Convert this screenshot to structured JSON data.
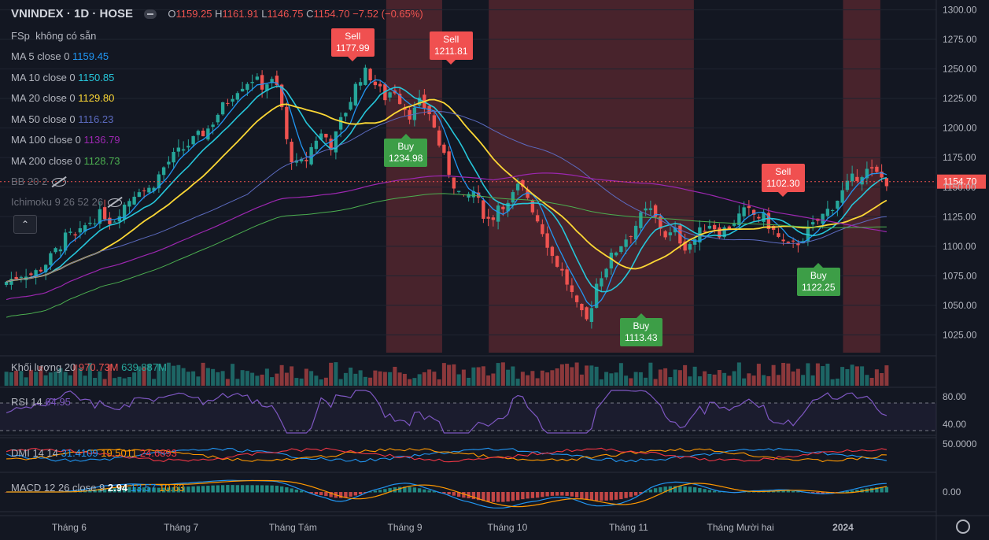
{
  "header": {
    "symbol": "VNINDEX · 1D · HOSE",
    "open_label": "O",
    "open": "1159.25",
    "high_label": "H",
    "high": "1161.91",
    "low_label": "L",
    "low": "1146.75",
    "close_label": "C",
    "close": "1154.70",
    "change": "−7.52 (−0.65%)"
  },
  "legend": {
    "fsp": {
      "label": "FSp",
      "value": "không có sẵn"
    },
    "ma": [
      {
        "label": "MA 5 close 0",
        "value": "1159.45",
        "color": "#2196f3"
      },
      {
        "label": "MA 10 close 0",
        "value": "1150.85",
        "color": "#26c6da"
      },
      {
        "label": "MA 20 close 0",
        "value": "1129.80",
        "color": "#fdd835"
      },
      {
        "label": "MA 50 close 0",
        "value": "1116.23",
        "color": "#5c6bc0"
      },
      {
        "label": "MA 100 close 0",
        "value": "1136.79",
        "color": "#9c27b0"
      },
      {
        "label": "MA 200 close 0",
        "value": "1128.73",
        "color": "#4caf50"
      }
    ],
    "bb": "BB 20 2",
    "ichimoku": "Ichimoku 9 26 52 26",
    "collapse_icon": "chevron-up-icon"
  },
  "price_label": "1154.70",
  "volume_legend": {
    "label": "Khối lượng 20",
    "v1": "970.73M",
    "v2": "639.887M"
  },
  "rsi_legend": {
    "label": "RSI 14",
    "value": "64.95"
  },
  "dmi_legend": {
    "label": "DMI 14 14",
    "v1": "31.4109",
    "v2": "19.5011",
    "v3": "24.6893"
  },
  "macd_legend": {
    "label": "MACD 12 26 close 9",
    "v1": "2.94",
    "v2": "13.57",
    "v3": "10.63"
  },
  "signals": [
    {
      "type": "Sell",
      "value": "1177.99"
    },
    {
      "type": "Sell",
      "value": "1211.81"
    },
    {
      "type": "Buy",
      "value": "1234.98"
    },
    {
      "type": "Buy",
      "value": "1113.43"
    },
    {
      "type": "Sell",
      "value": "1102.30"
    },
    {
      "type": "Buy",
      "value": "1122.25"
    }
  ],
  "colors": {
    "up": "#26a69a",
    "down": "#ef5350",
    "shade": "#5b2830",
    "bg": "#131722",
    "grid": "#1f2430",
    "axis_text": "#b2b5be"
  },
  "chart_data": {
    "type": "candlestick",
    "title": "VNINDEX",
    "price_axis_ticks": [
      1025,
      1050,
      1075,
      1100,
      1125,
      1150,
      1175,
      1200,
      1225,
      1250,
      1275,
      1300
    ],
    "price_axis_labels": [
      "1025.00",
      "1050.00",
      "1075.00",
      "1100.00",
      "1125.00",
      "1150.00",
      "1175.00",
      "1200.00",
      "1225.00",
      "1250.00",
      "1275.00",
      "1300.00"
    ],
    "ylim": [
      1010,
      1305
    ],
    "x_months": [
      "Tháng 6",
      "Tháng 7",
      "Tháng Tám",
      "Tháng 9",
      "Tháng 10",
      "Tháng 11",
      "Tháng Mười hai",
      "2024"
    ],
    "close_path": [
      1070,
      1074,
      1078,
      1076,
      1082,
      1090,
      1100,
      1110,
      1106,
      1118,
      1124,
      1128,
      1120,
      1132,
      1140,
      1150,
      1146,
      1156,
      1168,
      1176,
      1182,
      1188,
      1194,
      1200,
      1212,
      1222,
      1232,
      1238,
      1242,
      1236,
      1240,
      1232,
      1180,
      1168,
      1172,
      1190,
      1196,
      1184,
      1206,
      1222,
      1242,
      1248,
      1236,
      1226,
      1234,
      1220,
      1210,
      1222,
      1214,
      1190,
      1168,
      1150,
      1138,
      1148,
      1130,
      1120,
      1138,
      1134,
      1150,
      1146,
      1128,
      1112,
      1092,
      1080,
      1064,
      1044,
      1036,
      1068,
      1082,
      1094,
      1104,
      1112,
      1124,
      1132,
      1120,
      1108,
      1112,
      1100,
      1104,
      1114,
      1120,
      1112,
      1116,
      1124,
      1130,
      1126,
      1124,
      1114,
      1104,
      1098,
      1104,
      1112,
      1120,
      1128,
      1136,
      1146,
      1156,
      1162,
      1164,
      1160,
      1155
    ],
    "shaded_zones": [
      [
        0.41,
        0.47
      ],
      [
        0.52,
        0.74
      ],
      [
        0.9,
        0.94
      ]
    ],
    "rsi_levels": [
      40,
      80
    ],
    "rsi_labels": [
      "80.00",
      "40.00"
    ],
    "dmi_label": "50.0000",
    "macd_label": "0.00"
  }
}
